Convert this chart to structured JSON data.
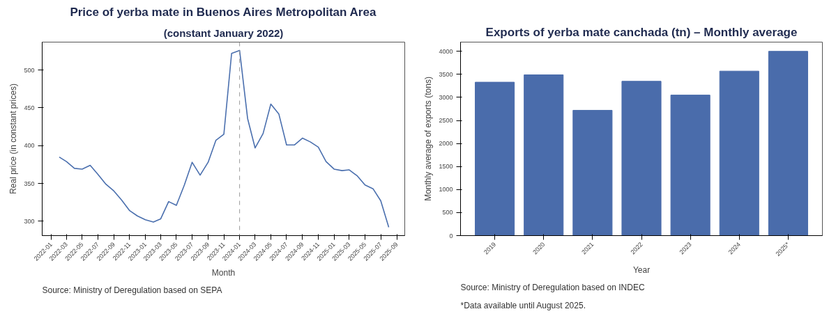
{
  "chart_data": [
    {
      "type": "line",
      "title": "Price of yerba mate in Buenos Aires Metropolitan Area",
      "subtitle": "(constant January 2022)",
      "xlabel": "Month",
      "ylabel": "Real price (in constant prices)",
      "x": [
        "2022-02",
        "2022-03",
        "2022-04",
        "2022-05",
        "2022-06",
        "2022-07",
        "2022-08",
        "2022-09",
        "2022-10",
        "2022-11",
        "2022-12",
        "2023-01",
        "2023-02",
        "2023-03",
        "2023-04",
        "2023-05",
        "2023-06",
        "2023-07",
        "2023-08",
        "2023-09",
        "2023-10",
        "2023-11",
        "2023-12",
        "2024-01",
        "2024-02",
        "2024-03",
        "2024-04",
        "2024-05",
        "2024-06",
        "2024-07",
        "2024-08",
        "2024-09",
        "2024-10",
        "2024-11",
        "2024-12",
        "2025-01",
        "2025-02",
        "2025-03",
        "2025-04",
        "2025-05",
        "2025-06",
        "2025-07",
        "2025-08"
      ],
      "series": [
        {
          "color": "#4a6fae",
          "values": [
            385,
            379,
            370,
            369,
            374,
            362,
            349,
            340,
            328,
            314,
            307,
            302,
            299,
            303,
            326,
            321,
            348,
            378,
            361,
            378,
            407,
            415,
            522,
            526,
            436,
            397,
            416,
            455,
            442,
            401,
            401,
            410,
            405,
            398,
            379,
            369,
            367,
            368,
            360,
            348,
            343,
            327,
            292
          ]
        }
      ],
      "xlim": [
        "2021-11-27",
        "2025-10-02"
      ],
      "xticks": [
        "2022-01",
        "2022-03",
        "2022-05",
        "2022-07",
        "2022-09",
        "2022-11",
        "2023-01",
        "2023-03",
        "2023-05",
        "2023-07",
        "2023-09",
        "2023-11",
        "2024-01",
        "2024-03",
        "2024-05",
        "2024-07",
        "2024-09",
        "2024-11",
        "2025-01",
        "2025-03",
        "2025-05",
        "2025-07",
        "2025-09"
      ],
      "ylim": [
        281,
        537
      ],
      "yticks": [
        300,
        350,
        400,
        450,
        500
      ],
      "ref_lines": [
        {
          "axis": "x",
          "value": "2024-01",
          "color": "#999999",
          "line_style": "dashed"
        }
      ],
      "line_style": "solid",
      "marker": "none",
      "annotations": [
        "Source: Ministry of Deregulation based on SEPA"
      ]
    },
    {
      "type": "bar",
      "title": "Exports of yerba mate canchada (tn) – Monthly average",
      "xlabel": "Year",
      "ylabel": "Monthly average of exports (tons)",
      "categories": [
        "2019",
        "2020",
        "2021",
        "2022",
        "2023",
        "2024",
        "2025*"
      ],
      "series": [
        {
          "color": "#4a6cab",
          "values": [
            3330,
            3490,
            2720,
            3350,
            3050,
            3570,
            4000
          ]
        }
      ],
      "ylim": [
        0,
        4200
      ],
      "yticks": [
        0,
        500,
        1000,
        1500,
        2000,
        2500,
        3000,
        3500,
        4000
      ],
      "annotations": [
        "Source: Ministry of Deregulation based on INDEC",
        "*Data available until August 2025."
      ]
    }
  ]
}
